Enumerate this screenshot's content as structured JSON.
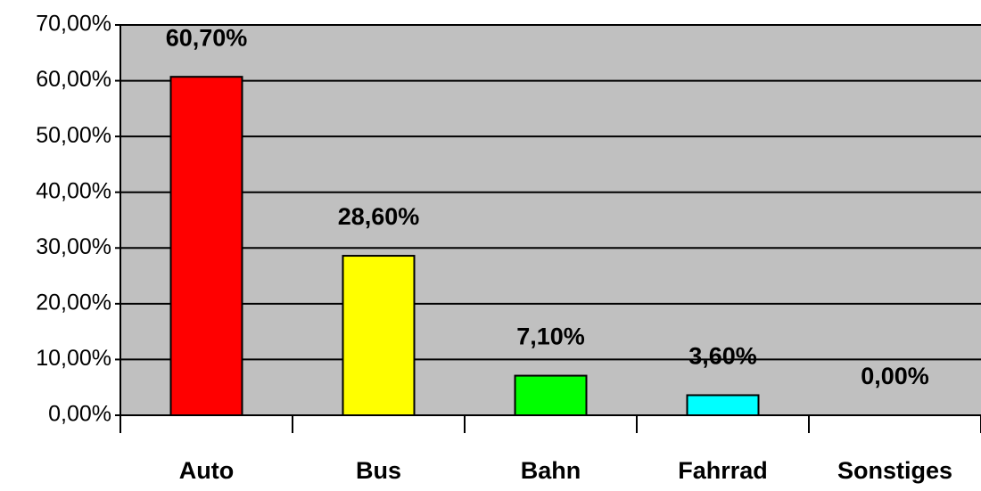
{
  "chart_data": {
    "type": "bar",
    "categories": [
      "Auto",
      "Bus",
      "Bahn",
      "Fahrrad",
      "Sonstiges"
    ],
    "values": [
      60.7,
      28.6,
      7.1,
      3.6,
      0
    ],
    "value_labels": [
      "60,70%",
      "28,60%",
      "7,10%",
      "3,60%",
      "0,00%"
    ],
    "colors": [
      "#ff0000",
      "#ffff00",
      "#00ff00",
      "#00ffff",
      null
    ],
    "ylim": [
      0,
      70
    ],
    "yticks": [
      {
        "value": 0,
        "label": "0,00%"
      },
      {
        "value": 10,
        "label": "10,00%"
      },
      {
        "value": 20,
        "label": "20,00%"
      },
      {
        "value": 30,
        "label": "30,00%"
      },
      {
        "value": 40,
        "label": "40,00%"
      },
      {
        "value": 50,
        "label": "50,00%"
      },
      {
        "value": 60,
        "label": "60,00%"
      },
      {
        "value": 70,
        "label": "70,00%"
      }
    ],
    "grid": true
  }
}
